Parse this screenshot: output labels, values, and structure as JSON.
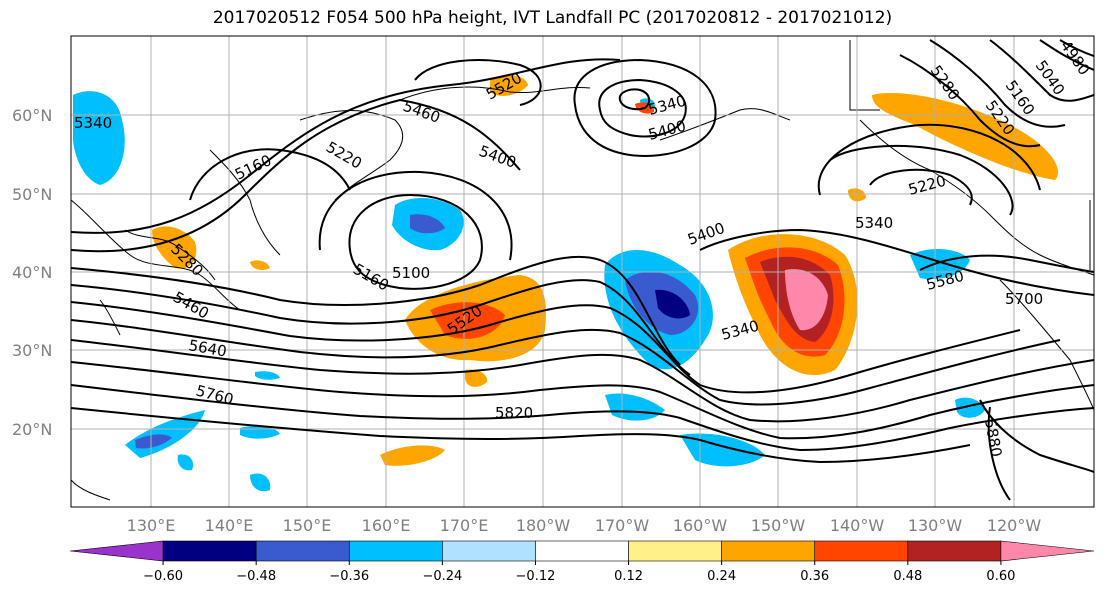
{
  "title": "2017020512 F054 500 hPa height, IVT Landfall PC (2017020812 - 2017021012)",
  "map": {
    "lat_labels": [
      {
        "text": "60°N",
        "lat": 60
      },
      {
        "text": "50°N",
        "lat": 50
      },
      {
        "text": "40°N",
        "lat": 40
      },
      {
        "text": "30°N",
        "lat": 30
      },
      {
        "text": "20°N",
        "lat": 20
      }
    ],
    "lon_labels": [
      "130°E",
      "140°E",
      "150°E",
      "160°E",
      "170°E",
      "180°W",
      "170°W",
      "160°W",
      "150°W",
      "140°W",
      "130°W",
      "120°W"
    ],
    "contour_labels": [
      "5340",
      "5460",
      "5220",
      "5400",
      "5520",
      "5340",
      "5400",
      "5280",
      "5040",
      "4980",
      "5160",
      "5220",
      "5160",
      "5100",
      "5160",
      "5280",
      "5460",
      "5520",
      "5640",
      "5760",
      "5820",
      "5400",
      "5340",
      "5220",
      "5340",
      "5580",
      "5700",
      "5880"
    ]
  },
  "colorbar": {
    "colors": [
      "#9933cc",
      "#000080",
      "#3a5bd0",
      "#00bfff",
      "#b0e2ff",
      "#ffffff",
      "#fff08a",
      "#ffa500",
      "#ff4500",
      "#b22222",
      "#ff88aa"
    ],
    "tick_labels": [
      "-0.60",
      "-0.48",
      "-0.36",
      "-0.24",
      "-0.12",
      "0.12",
      "0.24",
      "0.36",
      "0.48",
      "0.60"
    ]
  }
}
